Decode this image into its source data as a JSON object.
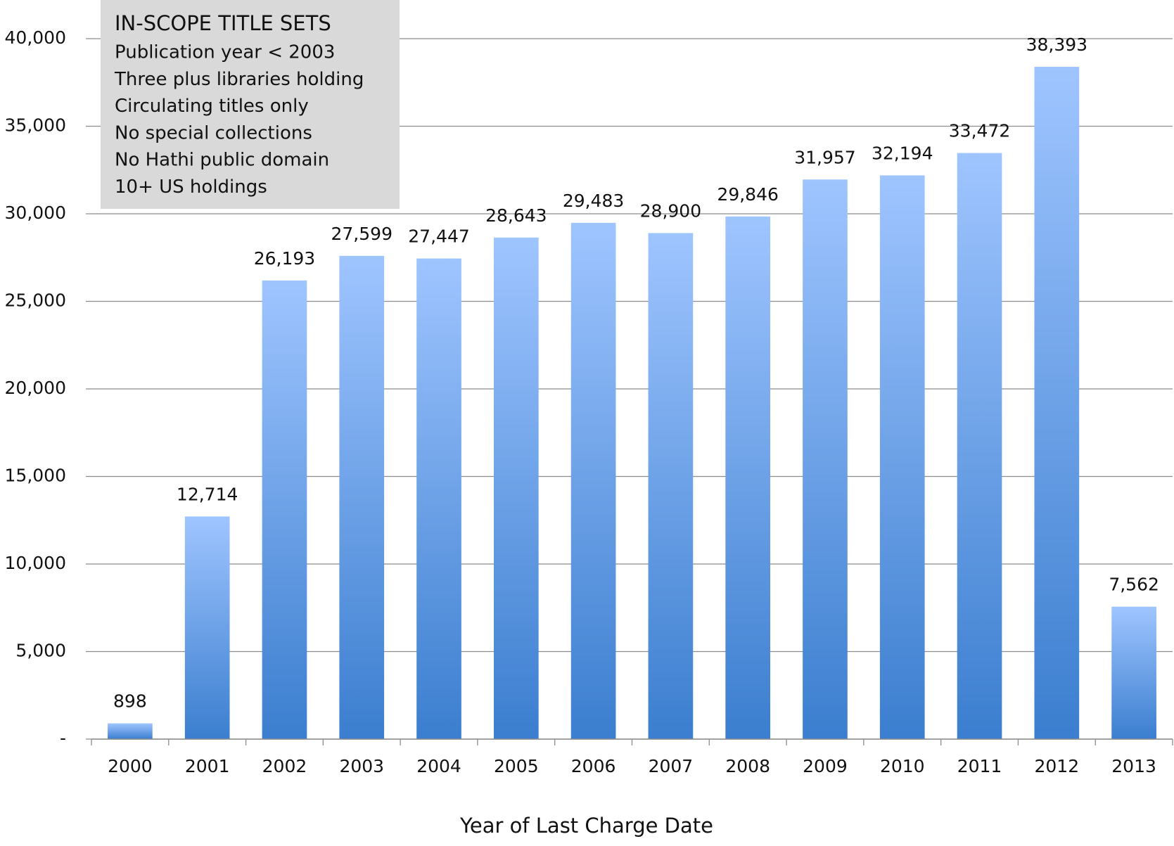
{
  "chart_data": {
    "type": "bar",
    "annotation": {
      "title": "IN-SCOPE TITLE SETS",
      "lines": [
        "Publication year < 2003",
        "Three plus libraries holding",
        "Circulating titles only",
        "No special collections",
        "No Hathi public domain",
        "10+ US holdings"
      ]
    },
    "x_label": "Year of Last Charge Date",
    "categories": [
      "2000",
      "2001",
      "2002",
      "2003",
      "2004",
      "2005",
      "2006",
      "2007",
      "2008",
      "2009",
      "2010",
      "2011",
      "2012",
      "2013"
    ],
    "values": [
      898,
      12714,
      26193,
      27599,
      27447,
      28643,
      29483,
      28900,
      29846,
      31957,
      32194,
      33472,
      38393,
      7562
    ],
    "value_labels": [
      "898",
      "12,714",
      "26,193",
      "27,599",
      "27,447",
      "28,643",
      "29,483",
      "28,900",
      "29,846",
      "31,957",
      "32,194",
      "33,472",
      "38,393",
      "7,562"
    ],
    "colors": [
      "#9fc5ff",
      "#3b7ecf"
    ],
    "ylim": [
      0,
      40000
    ],
    "yticks": [
      {
        "value": 0,
        "label": "-"
      },
      {
        "value": 5000,
        "label": "5,000"
      },
      {
        "value": 10000,
        "label": "10,000"
      },
      {
        "value": 15000,
        "label": "15,000"
      },
      {
        "value": 20000,
        "label": "20,000"
      },
      {
        "value": 25000,
        "label": "25,000"
      },
      {
        "value": 30000,
        "label": "30,000"
      },
      {
        "value": 35000,
        "label": "35,000"
      },
      {
        "value": 40000,
        "label": "40,000"
      }
    ],
    "grid": true
  }
}
